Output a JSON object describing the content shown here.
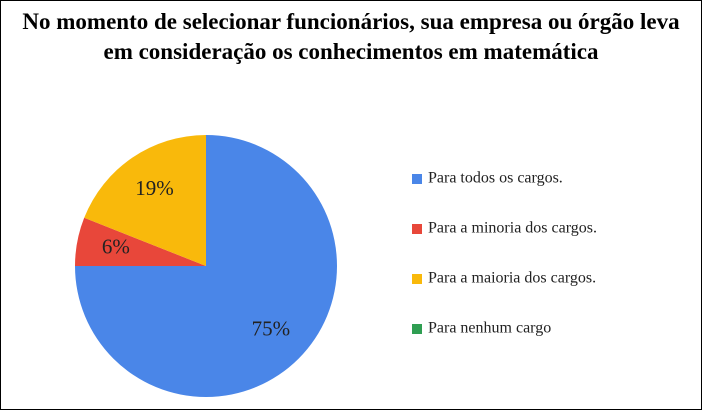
{
  "chart_data": {
    "type": "pie",
    "title": "No momento de selecionar funcionários, sua empresa ou órgão leva em consideração os conhecimentos em matemática",
    "categories": [
      "Para todos os cargos.",
      "Para a minoria dos cargos.",
      "Para a maioria dos cargos.",
      "Para nenhum cargo"
    ],
    "values": [
      75,
      6,
      19,
      0
    ],
    "value_labels": [
      "75%",
      "6%",
      "19%",
      null
    ],
    "colors": [
      "#4a86e8",
      "#e8473a",
      "#f9b90b",
      "#2f9e52"
    ],
    "legend": "right"
  }
}
